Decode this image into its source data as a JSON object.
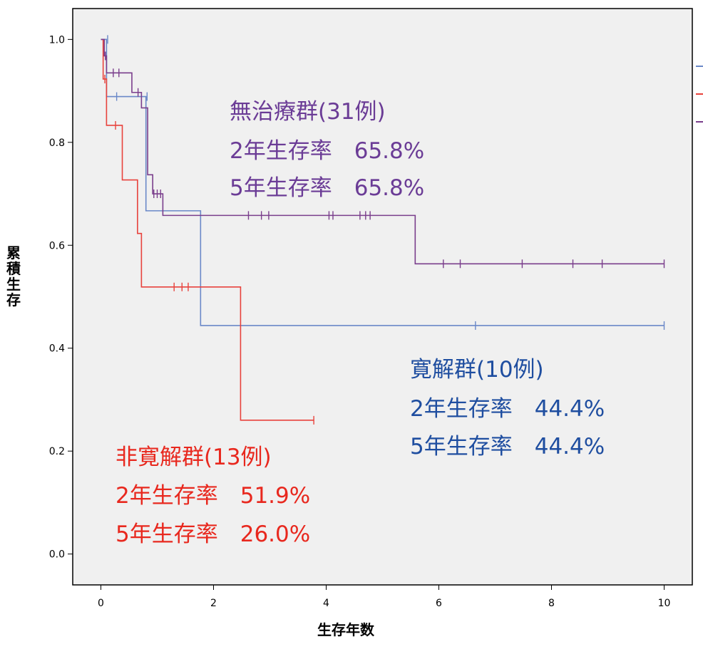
{
  "chart_data": {
    "type": "line",
    "xlabel": "生存年数",
    "ylabel": "累積生存",
    "xlim": [
      -0.5,
      10.5
    ],
    "ylim": [
      -0.06,
      1.06
    ],
    "x_ticks": [
      0,
      2,
      4,
      6,
      8,
      10
    ],
    "x_tick_labels": [
      "0",
      "2",
      "4",
      "6",
      "8",
      "10"
    ],
    "y_ticks": [
      0.0,
      0.2,
      0.4,
      0.6,
      0.8,
      1.0
    ],
    "y_tick_labels": [
      "0.0",
      "0.2",
      "0.4",
      "0.6",
      "0.8",
      "1.0"
    ],
    "grid": false,
    "legend": "right (partially cut off, colour swatches only)",
    "series": [
      {
        "key": "kankai",
        "color": "#6a88c8",
        "steps": [
          [
            0,
            1.0
          ],
          [
            0.1,
            0.889
          ],
          [
            0.8,
            0.667
          ],
          [
            1.77,
            0.444
          ],
          [
            10,
            0.444
          ]
        ],
        "censored": [
          [
            0.12,
            1.0
          ],
          [
            0.28,
            0.889
          ],
          [
            0.82,
            0.889
          ],
          [
            6.65,
            0.444
          ],
          [
            10,
            0.444
          ]
        ]
      },
      {
        "key": "hikankai",
        "color": "#e8423c",
        "steps": [
          [
            0,
            1.0
          ],
          [
            0.04,
            0.923
          ],
          [
            0.1,
            0.833
          ],
          [
            0.38,
            0.727
          ],
          [
            0.65,
            0.623
          ],
          [
            0.72,
            0.519
          ],
          [
            2.48,
            0.26
          ],
          [
            3.78,
            0.26
          ]
        ],
        "censored": [
          [
            0.07,
            0.923
          ],
          [
            0.26,
            0.833
          ],
          [
            1.3,
            0.519
          ],
          [
            1.44,
            0.519
          ],
          [
            1.55,
            0.519
          ],
          [
            3.78,
            0.26
          ]
        ]
      },
      {
        "key": "muchiryo",
        "color": "#7a3e8c",
        "steps": [
          [
            0,
            1.0
          ],
          [
            0.06,
            0.968
          ],
          [
            0.1,
            0.935
          ],
          [
            0.55,
            0.897
          ],
          [
            0.72,
            0.867
          ],
          [
            0.83,
            0.737
          ],
          [
            0.92,
            0.7
          ],
          [
            1.1,
            0.658
          ],
          [
            5.58,
            0.564
          ],
          [
            10,
            0.564
          ]
        ],
        "censored": [
          [
            0.08,
            0.968
          ],
          [
            0.22,
            0.935
          ],
          [
            0.32,
            0.935
          ],
          [
            0.66,
            0.897
          ],
          [
            0.94,
            0.7
          ],
          [
            1.0,
            0.7
          ],
          [
            1.06,
            0.7
          ],
          [
            2.62,
            0.658
          ],
          [
            2.85,
            0.658
          ],
          [
            2.98,
            0.658
          ],
          [
            4.05,
            0.658
          ],
          [
            4.12,
            0.658
          ],
          [
            4.6,
            0.658
          ],
          [
            4.7,
            0.658
          ],
          [
            4.78,
            0.658
          ],
          [
            6.08,
            0.564
          ],
          [
            6.38,
            0.564
          ],
          [
            7.48,
            0.564
          ],
          [
            8.38,
            0.564
          ],
          [
            8.9,
            0.564
          ],
          [
            10,
            0.564
          ]
        ]
      }
    ],
    "annotations": [
      {
        "series": "muchiryo",
        "color": "#6b3c96",
        "lines": [
          "無治療群(31例)",
          "2年生存率　65.8%",
          "5年生存率　65.8%"
        ]
      },
      {
        "series": "kankai",
        "color": "#1f4ea0",
        "lines": [
          "寛解群(10例)",
          "2年生存率　44.4%",
          "5年生存率　44.4%"
        ]
      },
      {
        "series": "hikankai",
        "color": "#e8281e",
        "lines": [
          "非寛解群(13例)",
          "2年生存率　51.9%",
          "5年生存率　26.0%"
        ]
      }
    ]
  }
}
